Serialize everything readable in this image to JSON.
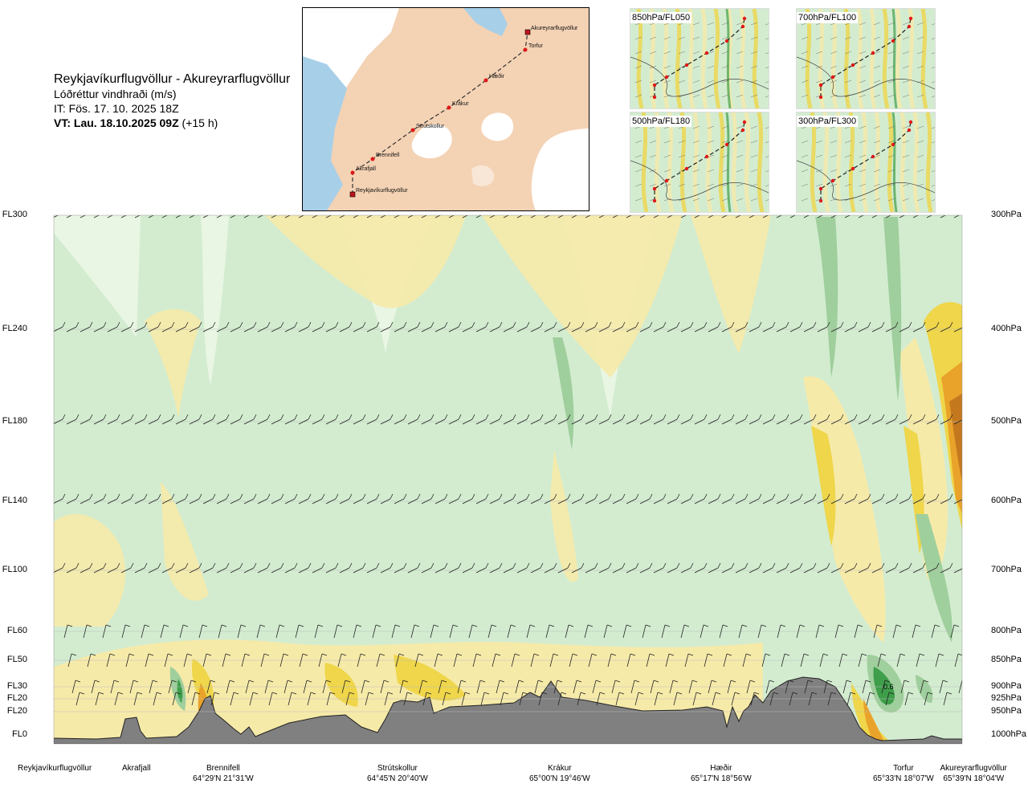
{
  "header": {
    "route_title": "Reykjavíkurflugvöllur - Akureyrarflugvöllur",
    "parameter": "Lóðréttur vindhraði (m/s)",
    "issue_time": "IT: Fös. 17. 10. 2025 18Z",
    "valid_time_bold": "VT: Lau. 18.10.2025 09Z",
    "valid_time_offset": "(+15 h)"
  },
  "route_map": {
    "waypoints": [
      {
        "label": "Akureyrarflugvöllur"
      },
      {
        "label": "Torfur"
      },
      {
        "label": "Hæðir"
      },
      {
        "label": "Krákur"
      },
      {
        "label": "Strútskollur"
      },
      {
        "label": "Brennifell"
      },
      {
        "label": "Akrafjall"
      },
      {
        "label": "Reykjavíkurflugvöllur"
      }
    ]
  },
  "level_maps": [
    {
      "label": "850hPa/FL050"
    },
    {
      "label": "700hPa/FL100"
    },
    {
      "label": "500hPa/FL180"
    },
    {
      "label": "300hPa/FL300"
    }
  ],
  "chart_data": {
    "type": "heatmap",
    "title": "Lóðréttur vindhraði (m/s)",
    "levels": [
      {
        "fl": "FL300",
        "hpa": "300hPa"
      },
      {
        "fl": "FL240",
        "hpa": "400hPa"
      },
      {
        "fl": "FL180",
        "hpa": "500hPa"
      },
      {
        "fl": "FL140",
        "hpa": "600hPa"
      },
      {
        "fl": "FL100",
        "hpa": "700hPa"
      },
      {
        "fl": "FL60",
        "hpa": "800hPa"
      },
      {
        "fl": "FL50",
        "hpa": "850hPa"
      },
      {
        "fl": "FL30",
        "hpa": "900hPa"
      },
      {
        "fl": "FL20",
        "hpa": "925hPa"
      },
      {
        "fl": "FL20",
        "hpa": "950hPa"
      },
      {
        "fl": "FL0",
        "hpa": "1000hPa"
      }
    ],
    "locations": [
      {
        "name": "Reykjavíkurflugvöllur",
        "coord": ""
      },
      {
        "name": "Akrafjall",
        "coord": ""
      },
      {
        "name": "Brennifell",
        "coord": "64°29'N 21°31'W"
      },
      {
        "name": "Strútskollur",
        "coord": "64°45'N 20°40'W"
      },
      {
        "name": "Krákur",
        "coord": "65°00'N 19°46'W"
      },
      {
        "name": "Hæðir",
        "coord": "65°17'N 18°56'W"
      },
      {
        "name": "Torfur",
        "coord": "65°33'N 18°07'W"
      },
      {
        "name": "Akureyrarflugvöllur",
        "coord": "65°39'N 18°04'W"
      }
    ],
    "annotation": "0.6",
    "colors": {
      "neutral": "#ffffff",
      "weak_up": "#d3ecd0",
      "very_weak_up": "#e9f6e3",
      "moderate_up": "#9fcf9c",
      "strong_up": "#3e9e4a",
      "very_weak_down": "#fbf5d2",
      "weak_down": "#f6eaa9",
      "moderate_down": "#efd64a",
      "strong_down": "#e9a22a",
      "extreme_down": "#c4781e",
      "terrain": "#808080"
    }
  }
}
